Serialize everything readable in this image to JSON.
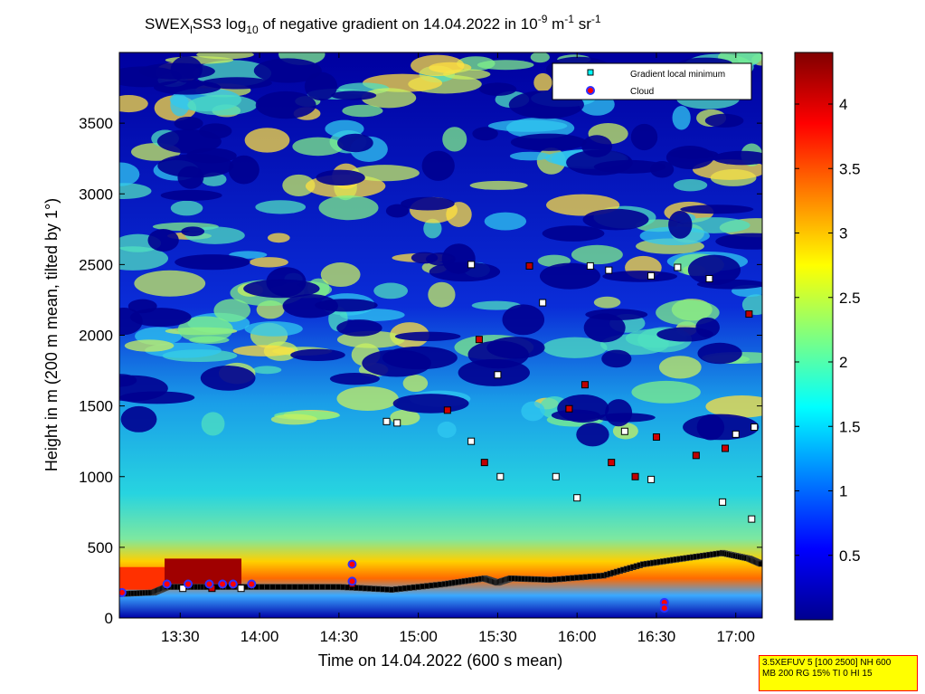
{
  "title": {
    "t1": "SWEX",
    "t1_sub": "l",
    "t2": "SS3 log",
    "t2_sub": "10",
    "t3": " of negative gradient on 14.04.2022 in 10",
    "t3_sup": "-9",
    "t4": " m",
    "t4_sup": "-1",
    "t5": " sr",
    "t5_sup": "-1"
  },
  "info_box": {
    "line1": "3.5XEFUV 5 [100 2500] NH 600",
    "line2": "MB 200 RG 15% TI 0 HI 15"
  },
  "chart_data": {
    "type": "heatmap",
    "xlabel": "Time on 14.04.2022 (600 s mean)",
    "ylabel": "Height in m (200 m mean, tilted by 1°)",
    "xlim": [
      "13:07",
      "17:10"
    ],
    "ylim": [
      0,
      4000
    ],
    "x_ticks": [
      "13:30",
      "14:00",
      "14:30",
      "15:00",
      "15:30",
      "16:00",
      "16:30",
      "17:00"
    ],
    "y_ticks": [
      0,
      500,
      1000,
      1500,
      2000,
      2500,
      3000,
      3500
    ],
    "colorbar": {
      "colormap": "jet",
      "range": [
        0,
        4.4
      ],
      "ticks": [
        0.5,
        1,
        1.5,
        2,
        2.5,
        3,
        3.5,
        4
      ]
    },
    "legend": {
      "position": "top-right",
      "entries": [
        {
          "label": "Gradient local minimum",
          "marker": "square",
          "color": "#00ffff"
        },
        {
          "label": "Cloud",
          "marker": "circle",
          "color": "#ff0000",
          "edge": "#0000ff"
        }
      ]
    },
    "boundary_layer_minimum_track": {
      "times": [
        "13:07",
        "13:20",
        "13:25",
        "13:40",
        "14:05",
        "14:30",
        "14:50",
        "15:10",
        "15:25",
        "15:30",
        "15:35",
        "15:50",
        "16:10",
        "16:25",
        "16:40",
        "16:55",
        "17:05",
        "17:10"
      ],
      "heights_m": [
        170,
        180,
        220,
        220,
        220,
        220,
        200,
        240,
        280,
        250,
        280,
        270,
        300,
        380,
        420,
        460,
        420,
        380
      ]
    },
    "gradient_minima": [
      {
        "time": "13:31",
        "height": 210
      },
      {
        "time": "13:42",
        "height": 210
      },
      {
        "time": "13:53",
        "height": 210
      },
      {
        "time": "14:35",
        "height": 240
      },
      {
        "time": "14:48",
        "height": 1390
      },
      {
        "time": "14:52",
        "height": 1380
      },
      {
        "time": "15:11",
        "height": 1470
      },
      {
        "time": "15:20",
        "height": 1250
      },
      {
        "time": "15:25",
        "height": 1100
      },
      {
        "time": "15:31",
        "height": 1000
      },
      {
        "time": "15:20",
        "height": 2500
      },
      {
        "time": "15:23",
        "height": 1970
      },
      {
        "time": "15:30",
        "height": 1720
      },
      {
        "time": "15:42",
        "height": 2490
      },
      {
        "time": "15:47",
        "height": 2230
      },
      {
        "time": "15:52",
        "height": 1000
      },
      {
        "time": "15:57",
        "height": 1480
      },
      {
        "time": "16:00",
        "height": 850
      },
      {
        "time": "16:03",
        "height": 1650
      },
      {
        "time": "16:05",
        "height": 2490
      },
      {
        "time": "16:12",
        "height": 2460
      },
      {
        "time": "16:13",
        "height": 1100
      },
      {
        "time": "16:18",
        "height": 1320
      },
      {
        "time": "16:22",
        "height": 1000
      },
      {
        "time": "16:28",
        "height": 980
      },
      {
        "time": "16:28",
        "height": 2420
      },
      {
        "time": "16:30",
        "height": 1280
      },
      {
        "time": "16:38",
        "height": 2480
      },
      {
        "time": "16:45",
        "height": 1150
      },
      {
        "time": "16:50",
        "height": 2400
      },
      {
        "time": "16:55",
        "height": 820
      },
      {
        "time": "16:56",
        "height": 1200
      },
      {
        "time": "17:00",
        "height": 1300
      },
      {
        "time": "17:05",
        "height": 2150
      },
      {
        "time": "17:06",
        "height": 700
      },
      {
        "time": "17:07",
        "height": 1350
      }
    ],
    "clouds": [
      {
        "time": "13:08",
        "height": 180
      },
      {
        "time": "13:25",
        "height": 240
      },
      {
        "time": "13:33",
        "height": 240
      },
      {
        "time": "13:41",
        "height": 240
      },
      {
        "time": "13:46",
        "height": 240
      },
      {
        "time": "13:50",
        "height": 240
      },
      {
        "time": "13:57",
        "height": 240
      },
      {
        "time": "14:35",
        "height": 380
      },
      {
        "time": "14:35",
        "height": 260
      },
      {
        "time": "16:33",
        "height": 110
      },
      {
        "time": "16:33",
        "height": 70
      }
    ]
  }
}
